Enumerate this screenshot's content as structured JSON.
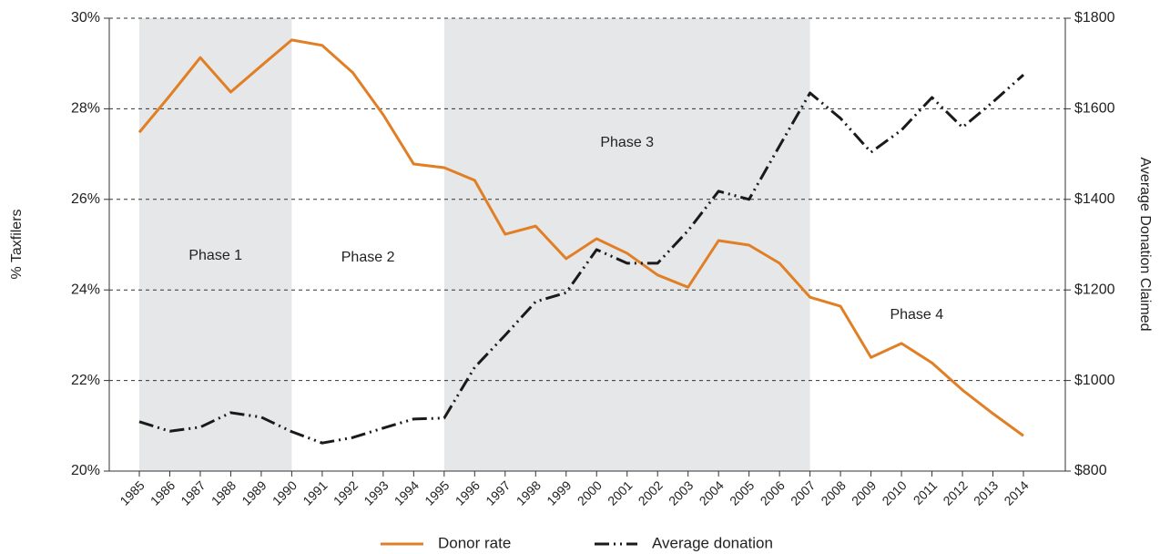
{
  "chart_data": {
    "type": "line",
    "y_label": "% Taxfilers",
    "y2_label": "Average Donation Claimed",
    "categories": [
      1985,
      1986,
      1987,
      1988,
      1989,
      1990,
      1991,
      1992,
      1993,
      1994,
      1995,
      1996,
      1997,
      1998,
      1999,
      2000,
      2001,
      2002,
      2003,
      2004,
      2005,
      2006,
      2007,
      2008,
      2009,
      2010,
      2011,
      2012,
      2013,
      2014
    ],
    "series": [
      {
        "name": "Donor rate",
        "color": "#e07f25",
        "linestyle": "solid",
        "values": [
          27.48,
          28.29,
          29.13,
          28.37,
          28.95,
          29.52,
          29.4,
          28.8,
          27.87,
          26.78,
          26.7,
          26.42,
          25.23,
          25.41,
          24.69,
          25.13,
          24.81,
          24.33,
          24.06,
          25.09,
          24.99,
          24.59,
          23.84,
          23.64,
          22.51,
          22.82,
          22.39,
          21.79,
          21.27,
          20.78
        ]
      },
      {
        "name": "Average donation",
        "color": "#1a1a1a",
        "linestyle": "dash-dot-dot",
        "axis": "y2",
        "values": [
          909,
          888,
          897,
          929,
          919,
          887,
          862,
          874,
          895,
          915,
          917,
          1029,
          1100,
          1174,
          1194,
          1289,
          1259,
          1259,
          1331,
          1418,
          1400,
          1518,
          1635,
          1579,
          1504,
          1553,
          1625,
          1559,
          1615,
          1675
        ]
      }
    ],
    "ylim": [
      20,
      30
    ],
    "yticks": [
      {
        "value": 20,
        "label": "20%"
      },
      {
        "value": 22,
        "label": "22%"
      },
      {
        "value": 24,
        "label": "24%"
      },
      {
        "value": 26,
        "label": "26%"
      },
      {
        "value": 28,
        "label": "28%"
      },
      {
        "value": 30,
        "label": "30%"
      }
    ],
    "y2lim": [
      800,
      1800
    ],
    "y2ticks": [
      {
        "value": 800,
        "label": "$800"
      },
      {
        "value": 1000,
        "label": "$1000"
      },
      {
        "value": 1200,
        "label": "$1200"
      },
      {
        "value": 1400,
        "label": "$1400"
      },
      {
        "value": 1600,
        "label": "$1600"
      },
      {
        "value": 1800,
        "label": "$1800"
      }
    ],
    "grid": true,
    "legend": "bottom",
    "phases": [
      {
        "label": "Phase 1",
        "start": 1985,
        "end": 1990,
        "shaded": true
      },
      {
        "label": "Phase 2",
        "start": 1990,
        "end": 1995,
        "shaded": false
      },
      {
        "label": "Phase 3",
        "start": 1995,
        "end": 2007,
        "shaded": true
      },
      {
        "label": "Phase 4",
        "start": 2007,
        "end": 2014,
        "shaded": false
      }
    ]
  }
}
